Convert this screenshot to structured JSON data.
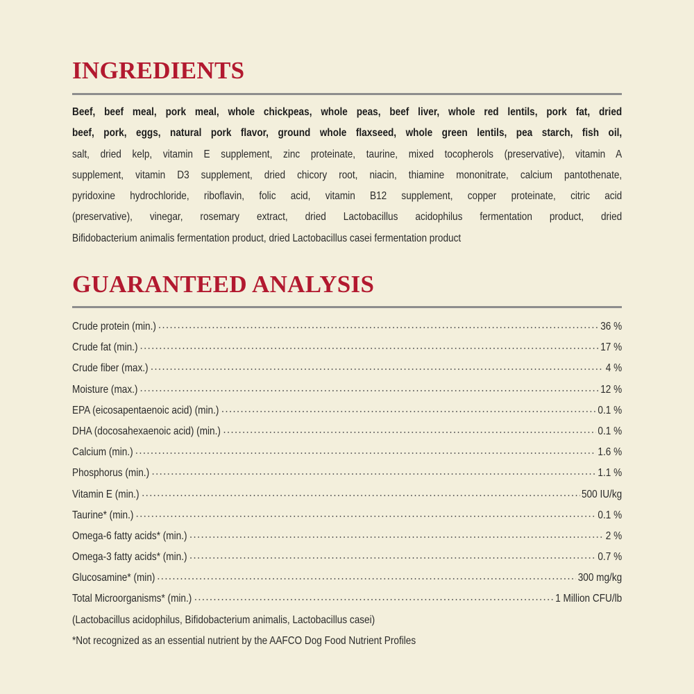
{
  "ingredients": {
    "title": "INGREDIENTS",
    "bold_lines": [
      "Beef, beef meal, pork meal, whole chickpeas, whole peas, beef liver, whole red lentils, pork fat, dried",
      "beef, pork, eggs, natural pork flavor, ground whole flaxseed, whole green lentils, pea starch, fish oil,"
    ],
    "lines": [
      "salt, dried kelp, vitamin E supplement, zinc proteinate, taurine, mixed tocopherols (preservative), vitamin A",
      "supplement, vitamin D3 supplement, dried chicory root, niacin, thiamine mononitrate, calcium pantothenate,",
      "pyridoxine hydrochloride, riboflavin, folic acid, vitamin B12 supplement, copper proteinate, citric acid",
      "(preservative), vinegar, rosemary extract, dried Lactobacillus acidophilus fermentation product, dried",
      "Bifidobacterium animalis fermentation product, dried Lactobacillus casei fermentation product"
    ]
  },
  "analysis": {
    "title": "GUARANTEED ANALYSIS",
    "rows": [
      {
        "label": "Crude protein (min.)",
        "value": "36 %"
      },
      {
        "label": "Crude fat (min.)",
        "value": "17 %"
      },
      {
        "label": "Crude fiber (max.)",
        "value": "4 %"
      },
      {
        "label": "Moisture (max.)",
        "value": "12 %"
      },
      {
        "label": "EPA (eicosapentaenoic acid) (min.)",
        "value": "0.1 %"
      },
      {
        "label": "DHA (docosahexaenoic acid) (min.)",
        "value": "0.1 %"
      },
      {
        "label": "Calcium (min.)",
        "value": "1.6 %"
      },
      {
        "label": "Phosphorus (min.)",
        "value": "1.1 %"
      },
      {
        "label": "Vitamin E (min.)",
        "value": "500 IU/kg"
      },
      {
        "label": "Taurine* (min.)",
        "value": "0.1 %"
      },
      {
        "label": "Omega-6 fatty acids* (min.)",
        "value": "2 %"
      },
      {
        "label": "Omega-3 fatty acids* (min.)",
        "value": "0.7 %"
      },
      {
        "label": "Glucosamine* (min)",
        "value": "300 mg/kg"
      },
      {
        "label": "Total Microorganisms* (min.)",
        "value": "1 Million CFU/lb"
      }
    ],
    "microorganisms_note": "(Lactobacillus acidophilus, Bifidobacterium animalis, Lactobacillus casei)",
    "footnote": "*Not recognized as an essential nutrient by the AAFCO Dog Food Nutrient Profiles"
  },
  "colors": {
    "heading": "#b2192f",
    "background": "#f3efdc",
    "rule": "#8d8d8d"
  }
}
